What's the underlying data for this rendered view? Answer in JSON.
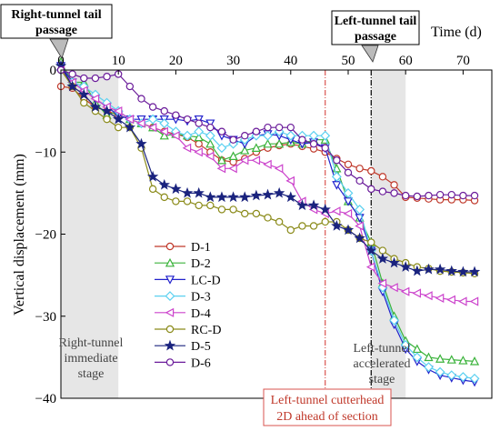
{
  "chart_data": {
    "type": "line",
    "xlabel": "Time (d)",
    "ylabel": "Vertical displacement (mm)",
    "xlim": [
      0,
      75
    ],
    "ylim": [
      -40,
      0
    ],
    "x_ticks": [
      0,
      10,
      20,
      30,
      40,
      50,
      60,
      70
    ],
    "y_ticks": [
      0,
      -10,
      -20,
      -30,
      -40
    ],
    "x_tick_labels": [
      "0",
      "10",
      "20",
      "30",
      "40",
      "50",
      "60",
      "70"
    ],
    "y_tick_labels": [
      "0",
      "−10",
      "−20",
      "−30",
      "−40"
    ],
    "x_axis_position": "top",
    "legend_position": "lower-center",
    "shaded_regions": [
      {
        "x": [
          0,
          10
        ],
        "label": "Right-tunnel immediate stage"
      },
      {
        "x": [
          54,
          60
        ],
        "label": "Left-tunnel accelerated stage"
      }
    ],
    "reference_lines": [
      {
        "x": 46,
        "color": "#d9534f",
        "label": "Left-tunnel cutterhead 2D ahead of section"
      },
      {
        "x": 54,
        "color": "#000000",
        "label": ""
      }
    ],
    "callouts": [
      {
        "x": 0,
        "label": "Right-tunnel tail passage"
      },
      {
        "x": 54,
        "label": "Left-tunnel tail passage"
      }
    ],
    "series": [
      {
        "name": "D-1",
        "color": "#c0392b",
        "marker": "circle",
        "x": [
          0,
          2,
          4,
          6,
          8,
          10,
          12,
          14,
          16,
          18,
          20,
          22,
          24,
          26,
          28,
          30,
          32,
          34,
          36,
          38,
          40,
          42,
          44,
          46,
          48,
          50,
          52,
          54,
          56,
          58,
          60,
          62,
          64,
          66,
          68,
          70,
          72
        ],
        "y": [
          -2.0,
          -2.2,
          -3.5,
          -4.5,
          -5.0,
          -5.5,
          -6.0,
          -6.5,
          -7.0,
          -7.5,
          -7.8,
          -8.2,
          -9.0,
          -10.0,
          -11.0,
          -11.2,
          -10.8,
          -10.0,
          -9.5,
          -9.2,
          -9.0,
          -9.3,
          -9.6,
          -10.0,
          -10.8,
          -11.5,
          -12.0,
          -12.3,
          -13.0,
          -14.0,
          -15.5,
          -15.6,
          -15.7,
          -15.8,
          -15.8,
          -15.8,
          -15.9
        ]
      },
      {
        "name": "D-2",
        "color": "#3bb33b",
        "marker": "triangle-up",
        "x": [
          0,
          2,
          4,
          6,
          8,
          10,
          12,
          14,
          16,
          18,
          20,
          22,
          24,
          26,
          28,
          30,
          32,
          34,
          36,
          38,
          40,
          42,
          44,
          46,
          48,
          50,
          52,
          54,
          56,
          58,
          60,
          62,
          64,
          66,
          68,
          70,
          72
        ],
        "y": [
          1.0,
          -1.5,
          -1.5,
          -4.0,
          -5.5,
          -5.0,
          -6.0,
          -6.5,
          -7.0,
          -8.0,
          -7.8,
          -8.0,
          -8.2,
          -9.0,
          -11.0,
          -10.5,
          -9.8,
          -9.5,
          -9.0,
          -9.0,
          -8.8,
          -9.0,
          -8.5,
          -8.5,
          -12.0,
          -16.0,
          -18.0,
          -21.0,
          -26.0,
          -30.0,
          -33.0,
          -34.0,
          -35.0,
          -35.2,
          -35.3,
          -35.4,
          -35.5
        ]
      },
      {
        "name": "LC-D",
        "color": "#2222cc",
        "marker": "triangle-down",
        "x": [
          0,
          2,
          4,
          6,
          8,
          10,
          12,
          14,
          16,
          18,
          20,
          22,
          24,
          26,
          28,
          30,
          32,
          34,
          36,
          38,
          40,
          42,
          44,
          46,
          48,
          50,
          52,
          54,
          56,
          58,
          60,
          62,
          64,
          66,
          68,
          70,
          72
        ],
        "y": [
          0.5,
          -1.5,
          -2.5,
          -3.5,
          -4.5,
          -5.5,
          -6.0,
          -6.0,
          -6.0,
          -6.0,
          -6.0,
          -6.2,
          -6.0,
          -6.5,
          -8.0,
          -8.5,
          -9.0,
          -8.0,
          -7.8,
          -8.0,
          -8.5,
          -9.0,
          -8.8,
          -9.5,
          -14.0,
          -16.0,
          -18.0,
          -22.0,
          -27.0,
          -31.0,
          -34.0,
          -35.5,
          -36.5,
          -37.2,
          -37.5,
          -37.8,
          -38.0
        ]
      },
      {
        "name": "D-3",
        "color": "#5bd0f0",
        "marker": "diamond",
        "x": [
          0,
          2,
          4,
          6,
          8,
          10,
          12,
          14,
          16,
          18,
          20,
          22,
          24,
          26,
          28,
          30,
          32,
          34,
          36,
          38,
          40,
          42,
          44,
          46,
          48,
          50,
          52,
          54,
          56,
          58,
          60,
          62,
          64,
          66,
          68,
          70,
          72
        ],
        "y": [
          0.0,
          -1.5,
          -2.0,
          -3.0,
          -4.0,
          -5.0,
          -6.0,
          -6.5,
          -6.0,
          -6.5,
          -7.5,
          -8.0,
          -7.5,
          -8.0,
          -9.5,
          -9.0,
          -8.5,
          -8.0,
          -8.0,
          -7.5,
          -8.0,
          -8.0,
          -8.0,
          -8.0,
          -13.0,
          -15.0,
          -17.0,
          -22.0,
          -26.5,
          -30.5,
          -33.5,
          -35.0,
          -36.2,
          -36.8,
          -37.2,
          -37.4,
          -37.6
        ]
      },
      {
        "name": "D-4",
        "color": "#cc44cc",
        "marker": "triangle-left",
        "x": [
          0,
          2,
          4,
          6,
          8,
          10,
          12,
          14,
          16,
          18,
          20,
          22,
          24,
          26,
          28,
          30,
          32,
          34,
          36,
          38,
          40,
          42,
          44,
          46,
          48,
          50,
          52,
          54,
          56,
          58,
          60,
          62,
          64,
          66,
          68,
          70,
          72
        ],
        "y": [
          0.0,
          -1.5,
          -2.5,
          -3.5,
          -4.5,
          -5.0,
          -6.0,
          -6.5,
          -7.0,
          -7.5,
          -8.0,
          -9.5,
          -10.0,
          -10.5,
          -12.0,
          -12.0,
          -11.0,
          -11.0,
          -11.5,
          -12.0,
          -13.5,
          -16.0,
          -17.0,
          -17.5,
          -17.2,
          -17.5,
          -19.0,
          -24.0,
          -26.0,
          -26.5,
          -27.0,
          -27.2,
          -27.5,
          -27.8,
          -28.0,
          -28.2,
          -28.2
        ]
      },
      {
        "name": "RC-D",
        "color": "#8b8b1a",
        "marker": "circle",
        "x": [
          0,
          2,
          4,
          6,
          8,
          10,
          12,
          14,
          16,
          18,
          20,
          22,
          24,
          26,
          28,
          30,
          32,
          34,
          36,
          38,
          40,
          42,
          44,
          46,
          48,
          50,
          52,
          54,
          56,
          58,
          60,
          62,
          64,
          66,
          68,
          70,
          72
        ],
        "y": [
          0.0,
          -2.0,
          -4.0,
          -5.0,
          -6.0,
          -7.0,
          -7.0,
          -9.5,
          -14.5,
          -15.5,
          -16.0,
          -16.0,
          -16.5,
          -16.5,
          -17.0,
          -17.0,
          -17.5,
          -17.5,
          -18.0,
          -18.5,
          -19.5,
          -19.0,
          -19.0,
          -18.5,
          -18.5,
          -19.5,
          -20.5,
          -21.0,
          -22.0,
          -23.0,
          -23.5,
          -24.0,
          -24.2,
          -24.5,
          -24.6,
          -24.7,
          -24.8
        ]
      },
      {
        "name": "D-5",
        "color": "#1a237e",
        "marker": "star",
        "x": [
          0,
          2,
          4,
          6,
          8,
          10,
          12,
          14,
          16,
          18,
          20,
          22,
          24,
          26,
          28,
          30,
          32,
          34,
          36,
          38,
          40,
          42,
          44,
          46,
          48,
          50,
          52,
          54,
          56,
          58,
          60,
          62,
          64,
          66,
          68,
          70,
          72
        ],
        "y": [
          0.5,
          -2.0,
          -3.0,
          -4.5,
          -5.0,
          -6.0,
          -7.0,
          -9.0,
          -13.0,
          -14.0,
          -14.5,
          -15.0,
          -15.0,
          -15.5,
          -15.5,
          -15.5,
          -15.5,
          -15.3,
          -15.2,
          -15.0,
          -15.5,
          -16.5,
          -16.5,
          -17.0,
          -19.0,
          -19.5,
          -20.5,
          -22.0,
          -23.0,
          -23.5,
          -24.0,
          -24.5,
          -24.3,
          -24.3,
          -24.5,
          -24.6,
          -24.6
        ]
      },
      {
        "name": "D-6",
        "color": "#6a1b9a",
        "marker": "circle",
        "x": [
          0,
          2,
          4,
          6,
          8,
          10,
          12,
          14,
          16,
          18,
          20,
          22,
          24,
          26,
          28,
          30,
          32,
          34,
          36,
          38,
          40,
          42,
          44,
          46,
          48,
          50,
          52,
          54,
          56,
          58,
          60,
          62,
          64,
          66,
          68,
          70,
          72
        ],
        "y": [
          0.0,
          -0.5,
          -1.0,
          -1.0,
          -0.8,
          -0.5,
          -2.0,
          -3.5,
          -4.5,
          -5.0,
          -5.5,
          -6.0,
          -6.5,
          -7.0,
          -7.5,
          -8.5,
          -8.0,
          -7.5,
          -7.0,
          -7.0,
          -7.0,
          -8.5,
          -9.0,
          -9.5,
          -11.0,
          -12.5,
          -13.5,
          -14.5,
          -14.8,
          -15.0,
          -15.3,
          -15.4,
          -15.3,
          -15.2,
          -15.2,
          -15.3,
          -15.3
        ]
      }
    ]
  }
}
